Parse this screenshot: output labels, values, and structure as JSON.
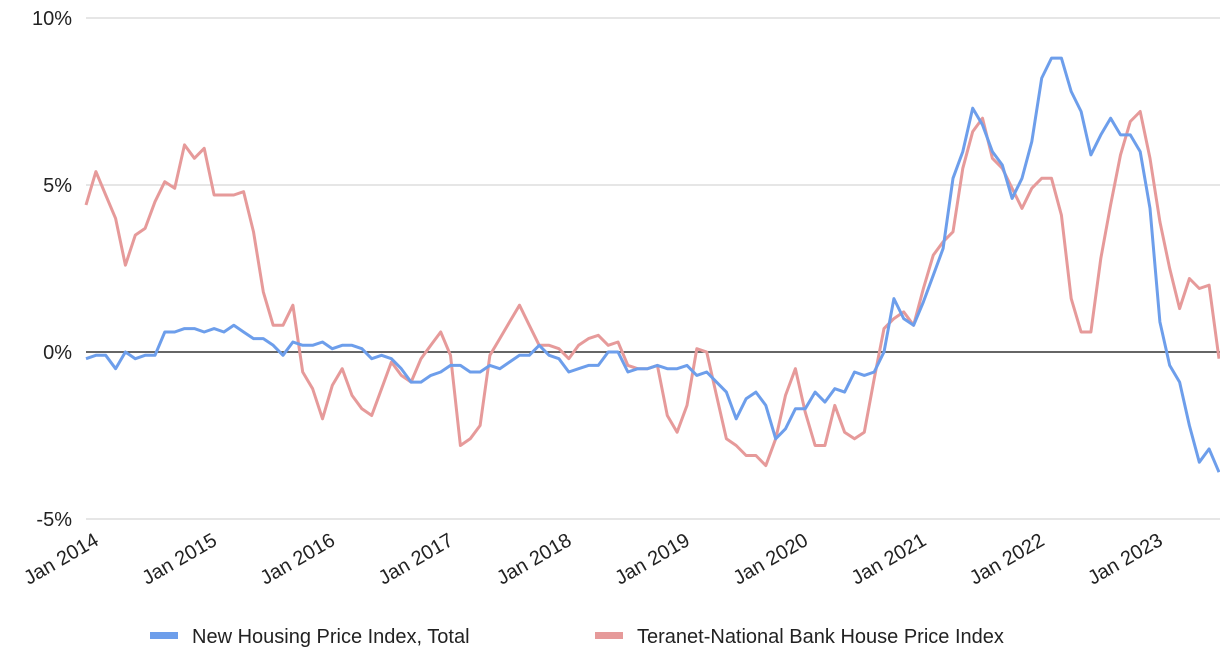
{
  "chart_data": {
    "type": "line",
    "categories": [
      "Jan 2014",
      null,
      null,
      null,
      null,
      null,
      null,
      null,
      null,
      null,
      null,
      null,
      "Jan 2015",
      null,
      null,
      null,
      null,
      null,
      null,
      null,
      null,
      null,
      null,
      null,
      "Jan 2016",
      null,
      null,
      null,
      null,
      null,
      null,
      null,
      null,
      null,
      null,
      null,
      "Jan 2017",
      null,
      null,
      null,
      null,
      null,
      null,
      null,
      null,
      null,
      null,
      null,
      "Jan 2018",
      null,
      null,
      null,
      null,
      null,
      null,
      null,
      null,
      null,
      null,
      null,
      "Jan 2019",
      null,
      null,
      null,
      null,
      null,
      null,
      null,
      null,
      null,
      null,
      null,
      "Jan 2020",
      null,
      null,
      null,
      null,
      null,
      null,
      null,
      null,
      null,
      null,
      null,
      "Jan 2021",
      null,
      null,
      null,
      null,
      null,
      null,
      null,
      null,
      null,
      null,
      null,
      "Jan 2022",
      null,
      null,
      null,
      null,
      null,
      null,
      null,
      null,
      null,
      null,
      null,
      "Jan 2023",
      null,
      null,
      null,
      null,
      null,
      null,
      null
    ],
    "series": [
      {
        "name": "New Housing Price Index, Total",
        "color": "#6d9eeb",
        "values": [
          -0.2,
          -0.1,
          -0.1,
          -0.5,
          0.0,
          -0.2,
          -0.1,
          -0.1,
          0.6,
          0.6,
          0.7,
          0.7,
          0.6,
          0.7,
          0.6,
          0.8,
          0.6,
          0.4,
          0.4,
          0.2,
          -0.1,
          0.3,
          0.2,
          0.2,
          0.3,
          0.1,
          0.2,
          0.2,
          0.1,
          -0.2,
          -0.1,
          -0.2,
          -0.5,
          -0.9,
          -0.9,
          -0.7,
          -0.6,
          -0.4,
          -0.4,
          -0.6,
          -0.6,
          -0.4,
          -0.5,
          -0.3,
          -0.1,
          -0.1,
          0.2,
          -0.1,
          -0.2,
          -0.6,
          -0.5,
          -0.4,
          -0.4,
          0.0,
          0.0,
          -0.6,
          -0.5,
          -0.5,
          -0.4,
          -0.5,
          -0.5,
          -0.4,
          -0.7,
          -0.6,
          -0.9,
          -1.2,
          -2.0,
          -1.4,
          -1.2,
          -1.6,
          -2.6,
          -2.3,
          -1.7,
          -1.7,
          -1.2,
          -1.5,
          -1.1,
          -1.2,
          -0.6,
          -0.7,
          -0.6,
          0.0,
          1.6,
          1.0,
          0.8,
          1.5,
          2.3,
          3.1,
          5.2,
          6.0,
          7.3,
          6.8,
          6.0,
          5.6,
          4.6,
          5.2,
          6.3,
          8.2,
          8.8,
          8.8,
          7.8,
          7.2,
          5.9,
          6.5,
          7.0,
          6.5,
          6.5,
          6.0,
          4.3,
          0.9,
          -0.4,
          -0.9,
          -2.2,
          -3.3,
          -2.9,
          -3.6
        ]
      },
      {
        "name": "Teranet-National Bank House Price Index",
        "color": "#e69a9a",
        "values": [
          4.4,
          5.4,
          4.7,
          4.0,
          2.6,
          3.5,
          3.7,
          4.5,
          5.1,
          4.9,
          6.2,
          5.8,
          6.1,
          4.7,
          4.7,
          4.7,
          4.8,
          3.6,
          1.8,
          0.8,
          0.8,
          1.4,
          -0.6,
          -1.1,
          -2.0,
          -1.0,
          -0.5,
          -1.3,
          -1.7,
          -1.9,
          -1.1,
          -0.3,
          -0.7,
          -0.9,
          -0.2,
          0.2,
          0.6,
          -0.1,
          -2.8,
          -2.6,
          -2.2,
          -0.1,
          0.4,
          0.9,
          1.4,
          0.8,
          0.2,
          0.2,
          0.1,
          -0.2,
          0.2,
          0.4,
          0.5,
          0.2,
          0.3,
          -0.4,
          -0.5,
          -0.5,
          -0.4,
          -1.9,
          -2.4,
          -1.6,
          0.1,
          0.0,
          -1.3,
          -2.6,
          -2.8,
          -3.1,
          -3.1,
          -3.4,
          -2.6,
          -1.3,
          -0.5,
          -1.8,
          -2.8,
          -2.8,
          -1.6,
          -2.4,
          -2.6,
          -2.4,
          -0.8,
          0.7,
          1.0,
          1.2,
          0.8,
          1.9,
          2.9,
          3.3,
          3.6,
          5.5,
          6.6,
          7.0,
          5.8,
          5.5,
          4.9,
          4.3,
          4.9,
          5.2,
          5.2,
          4.1,
          1.6,
          0.6,
          0.6,
          2.8,
          4.4,
          5.9,
          6.9,
          7.2,
          5.8,
          3.9,
          2.5,
          1.3,
          2.2,
          1.9,
          2.0,
          -0.2
        ]
      }
    ],
    "ylim": [
      -5,
      10
    ],
    "yticks": [
      {
        "value": -5,
        "label": "-5%"
      },
      {
        "value": 0,
        "label": "0%"
      },
      {
        "value": 5,
        "label": "5%"
      },
      {
        "value": 10,
        "label": "10%"
      }
    ],
    "grid": true,
    "legend": "bottom"
  }
}
